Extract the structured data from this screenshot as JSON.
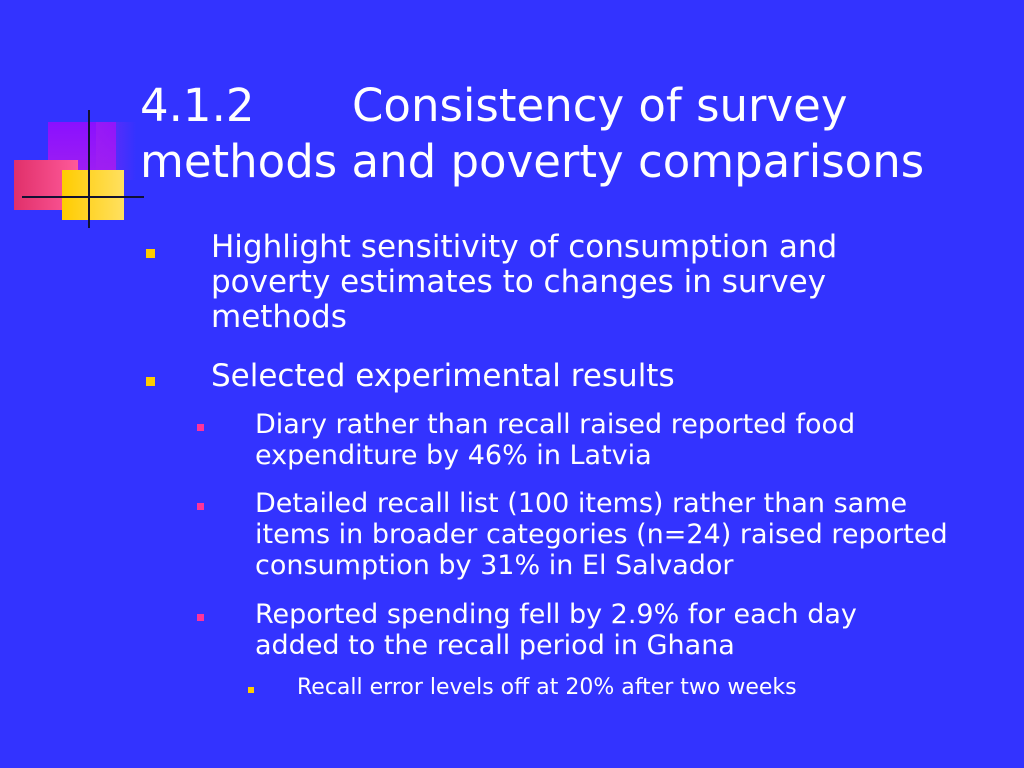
{
  "slide": {
    "title_number": "4.1.2",
    "title_text_line1": "Consistency of survey",
    "title_text_line2": "methods and poverty comparisons",
    "bullets": [
      {
        "level": 1,
        "text": "Highlight sensitivity of consumption and poverty estimates to changes in survey methods"
      },
      {
        "level": 1,
        "text": "Selected experimental results"
      },
      {
        "level": 2,
        "text": "Diary rather than recall raised reported food expenditure by 46% in Latvia"
      },
      {
        "level": 2,
        "text": "Detailed recall list (100 items) rather than same items in broader categories (n=24) raised reported consumption by 31% in El Salvador"
      },
      {
        "level": 2,
        "text": "Reported spending fell by 2.9% for each day added to the recall period in Ghana"
      },
      {
        "level": 3,
        "text": "Recall error levels off at 20% after two weeks"
      }
    ]
  },
  "colors": {
    "background": "#3333ff",
    "text": "#ffffff",
    "bullet_level1": "#ffcc00",
    "bullet_level2": "#ff3399",
    "bullet_level3": "#ffcc00"
  }
}
